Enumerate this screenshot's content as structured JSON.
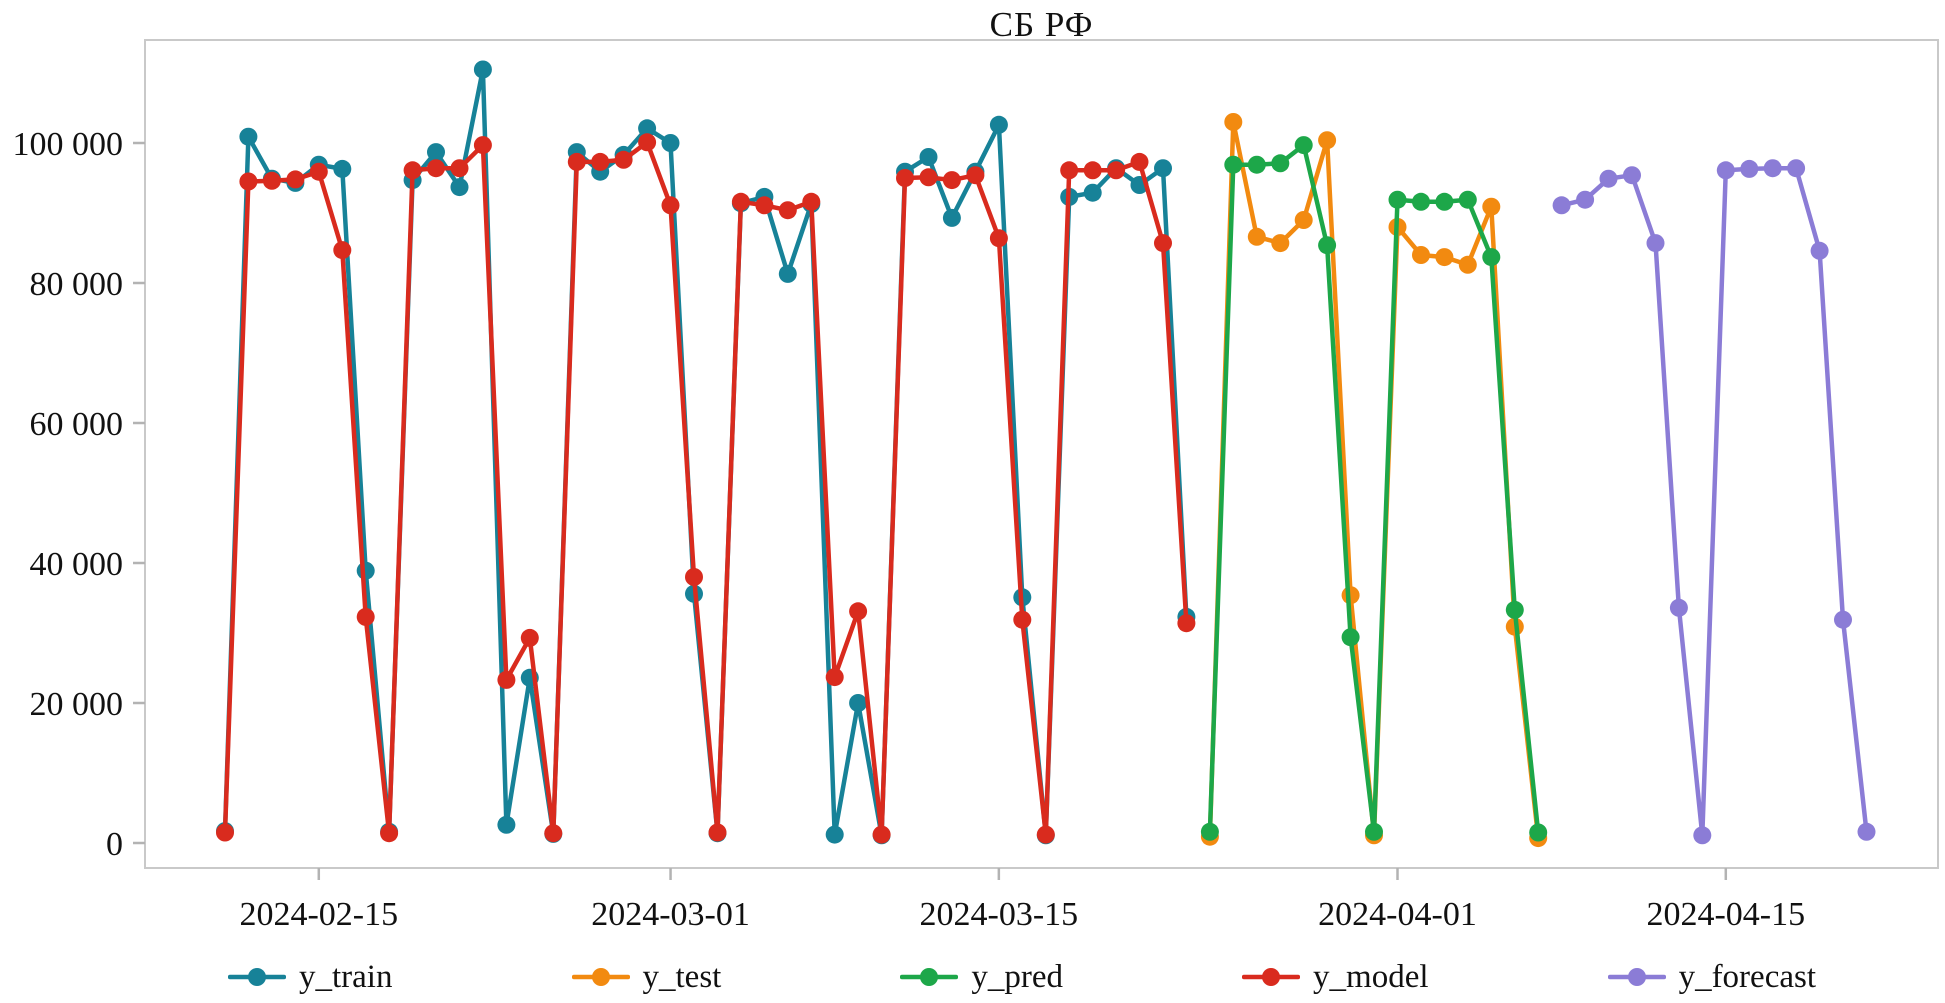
{
  "title": "СБ РФ",
  "chart_data": {
    "type": "line",
    "title": "СБ РФ",
    "grid": false,
    "legend_position": "bottom",
    "marker": "circle",
    "x_axis": {
      "type": "date",
      "epoch": "2024-02-11",
      "visible_range": [
        "2024-02-07",
        "2024-04-25"
      ],
      "ticks": [
        "2024-02-15",
        "2024-03-01",
        "2024-03-15",
        "2024-04-01",
        "2024-04-15"
      ]
    },
    "y_axis": {
      "range": [
        0,
        114700
      ],
      "ticks": [
        {
          "value": 0,
          "label": "0"
        },
        {
          "value": 20000,
          "label": "20 000"
        },
        {
          "value": 40000,
          "label": "40 000"
        },
        {
          "value": 60000,
          "label": "60 000"
        },
        {
          "value": 80000,
          "label": "80 000"
        },
        {
          "value": 100000,
          "label": "100 000"
        }
      ]
    },
    "series": [
      {
        "name": "y_train",
        "color": "#178298",
        "start": "2024-02-11",
        "values": [
          1700,
          100900,
          94900,
          94300,
          96900,
          96300,
          38900,
          1600,
          94700,
          98700,
          93700,
          110500,
          2600,
          23600,
          1300,
          98700,
          95900,
          98300,
          102100,
          100000,
          35600,
          1400,
          91400,
          92300,
          81300,
          91300,
          1200,
          20000,
          1100,
          95900,
          98000,
          89300,
          95900,
          102600,
          35100,
          1100,
          92300,
          92900,
          96400,
          94000,
          96400,
          32300
        ]
      },
      {
        "name": "y_test",
        "color": "#f28a10",
        "start": "2024-03-24",
        "values": [
          900,
          103000,
          86600,
          85700,
          89000,
          100400,
          35400,
          1100,
          88000,
          84000,
          83700,
          82600,
          90900,
          30900,
          700
        ]
      },
      {
        "name": "y_pred",
        "color": "#1da749",
        "start": "2024-03-24",
        "values": [
          1600,
          96900,
          96900,
          97100,
          99700,
          85400,
          29400,
          1600,
          91900,
          91600,
          91600,
          91900,
          83700,
          33300,
          1500
        ]
      },
      {
        "name": "y_model",
        "color": "#d92b1e",
        "start": "2024-02-11",
        "values": [
          1500,
          94500,
          94600,
          94800,
          95900,
          84700,
          32300,
          1400,
          96100,
          96400,
          96400,
          99700,
          23300,
          29300,
          1400,
          97300,
          97300,
          97600,
          100100,
          91100,
          38000,
          1500,
          91600,
          91100,
          90400,
          91600,
          23700,
          33100,
          1200,
          95000,
          95100,
          94700,
          95400,
          86400,
          31900,
          1200,
          96100,
          96100,
          96100,
          97300,
          85700,
          31400
        ]
      },
      {
        "name": "y_forecast",
        "color": "#8b7cd6",
        "start": "2024-04-08",
        "values": [
          91100,
          91900,
          94900,
          95400,
          85700,
          33600,
          1100,
          96100,
          96300,
          96400,
          96400,
          84600,
          31900,
          1600
        ]
      }
    ],
    "frame_color": "#c9c9c9",
    "tick_color": "#b3b3b3",
    "text_color": "#111111"
  }
}
